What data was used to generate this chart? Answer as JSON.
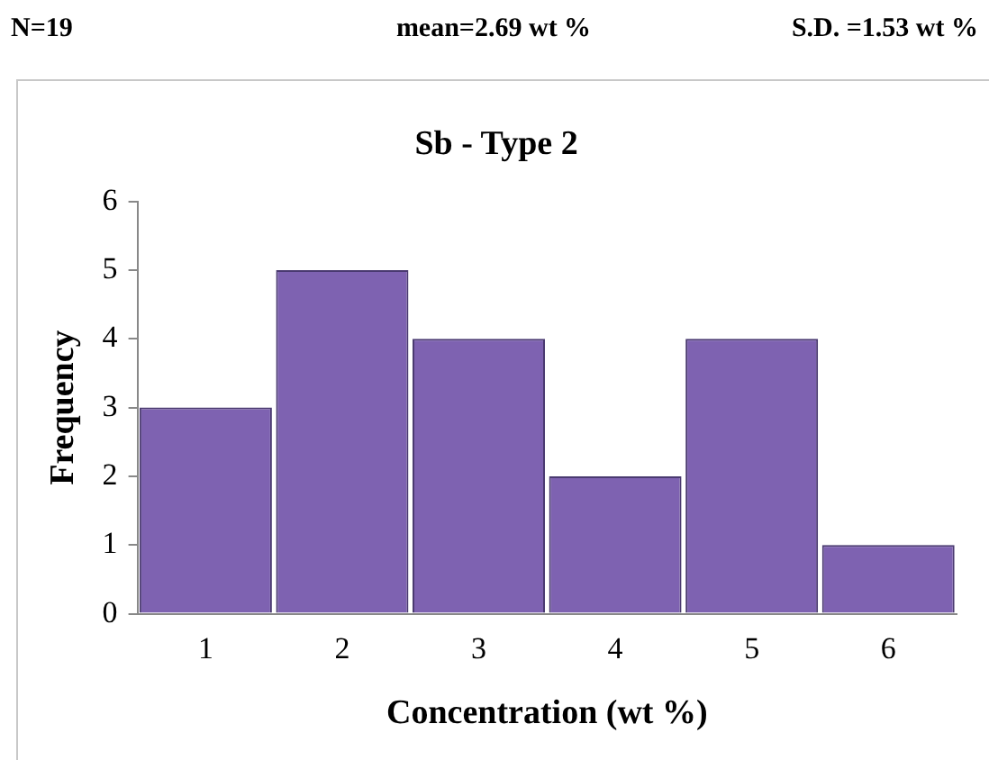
{
  "chart_data": {
    "type": "bar",
    "title": "Sb - Type 2",
    "xlabel": "Concentration (wt %)",
    "ylabel": "Frequency",
    "annotations": [
      "N=19",
      "mean=2.69 wt %",
      "S.D. =1.53 wt %"
    ],
    "categories": [
      "1",
      "2",
      "3",
      "4",
      "5",
      "6"
    ],
    "values": [
      3,
      5,
      4,
      2,
      4,
      1
    ],
    "color": "#7e62b1",
    "ylim": [
      0,
      6
    ],
    "yticks": [
      0,
      1,
      2,
      3,
      4,
      5,
      6
    ],
    "grid": false,
    "legend": false
  }
}
